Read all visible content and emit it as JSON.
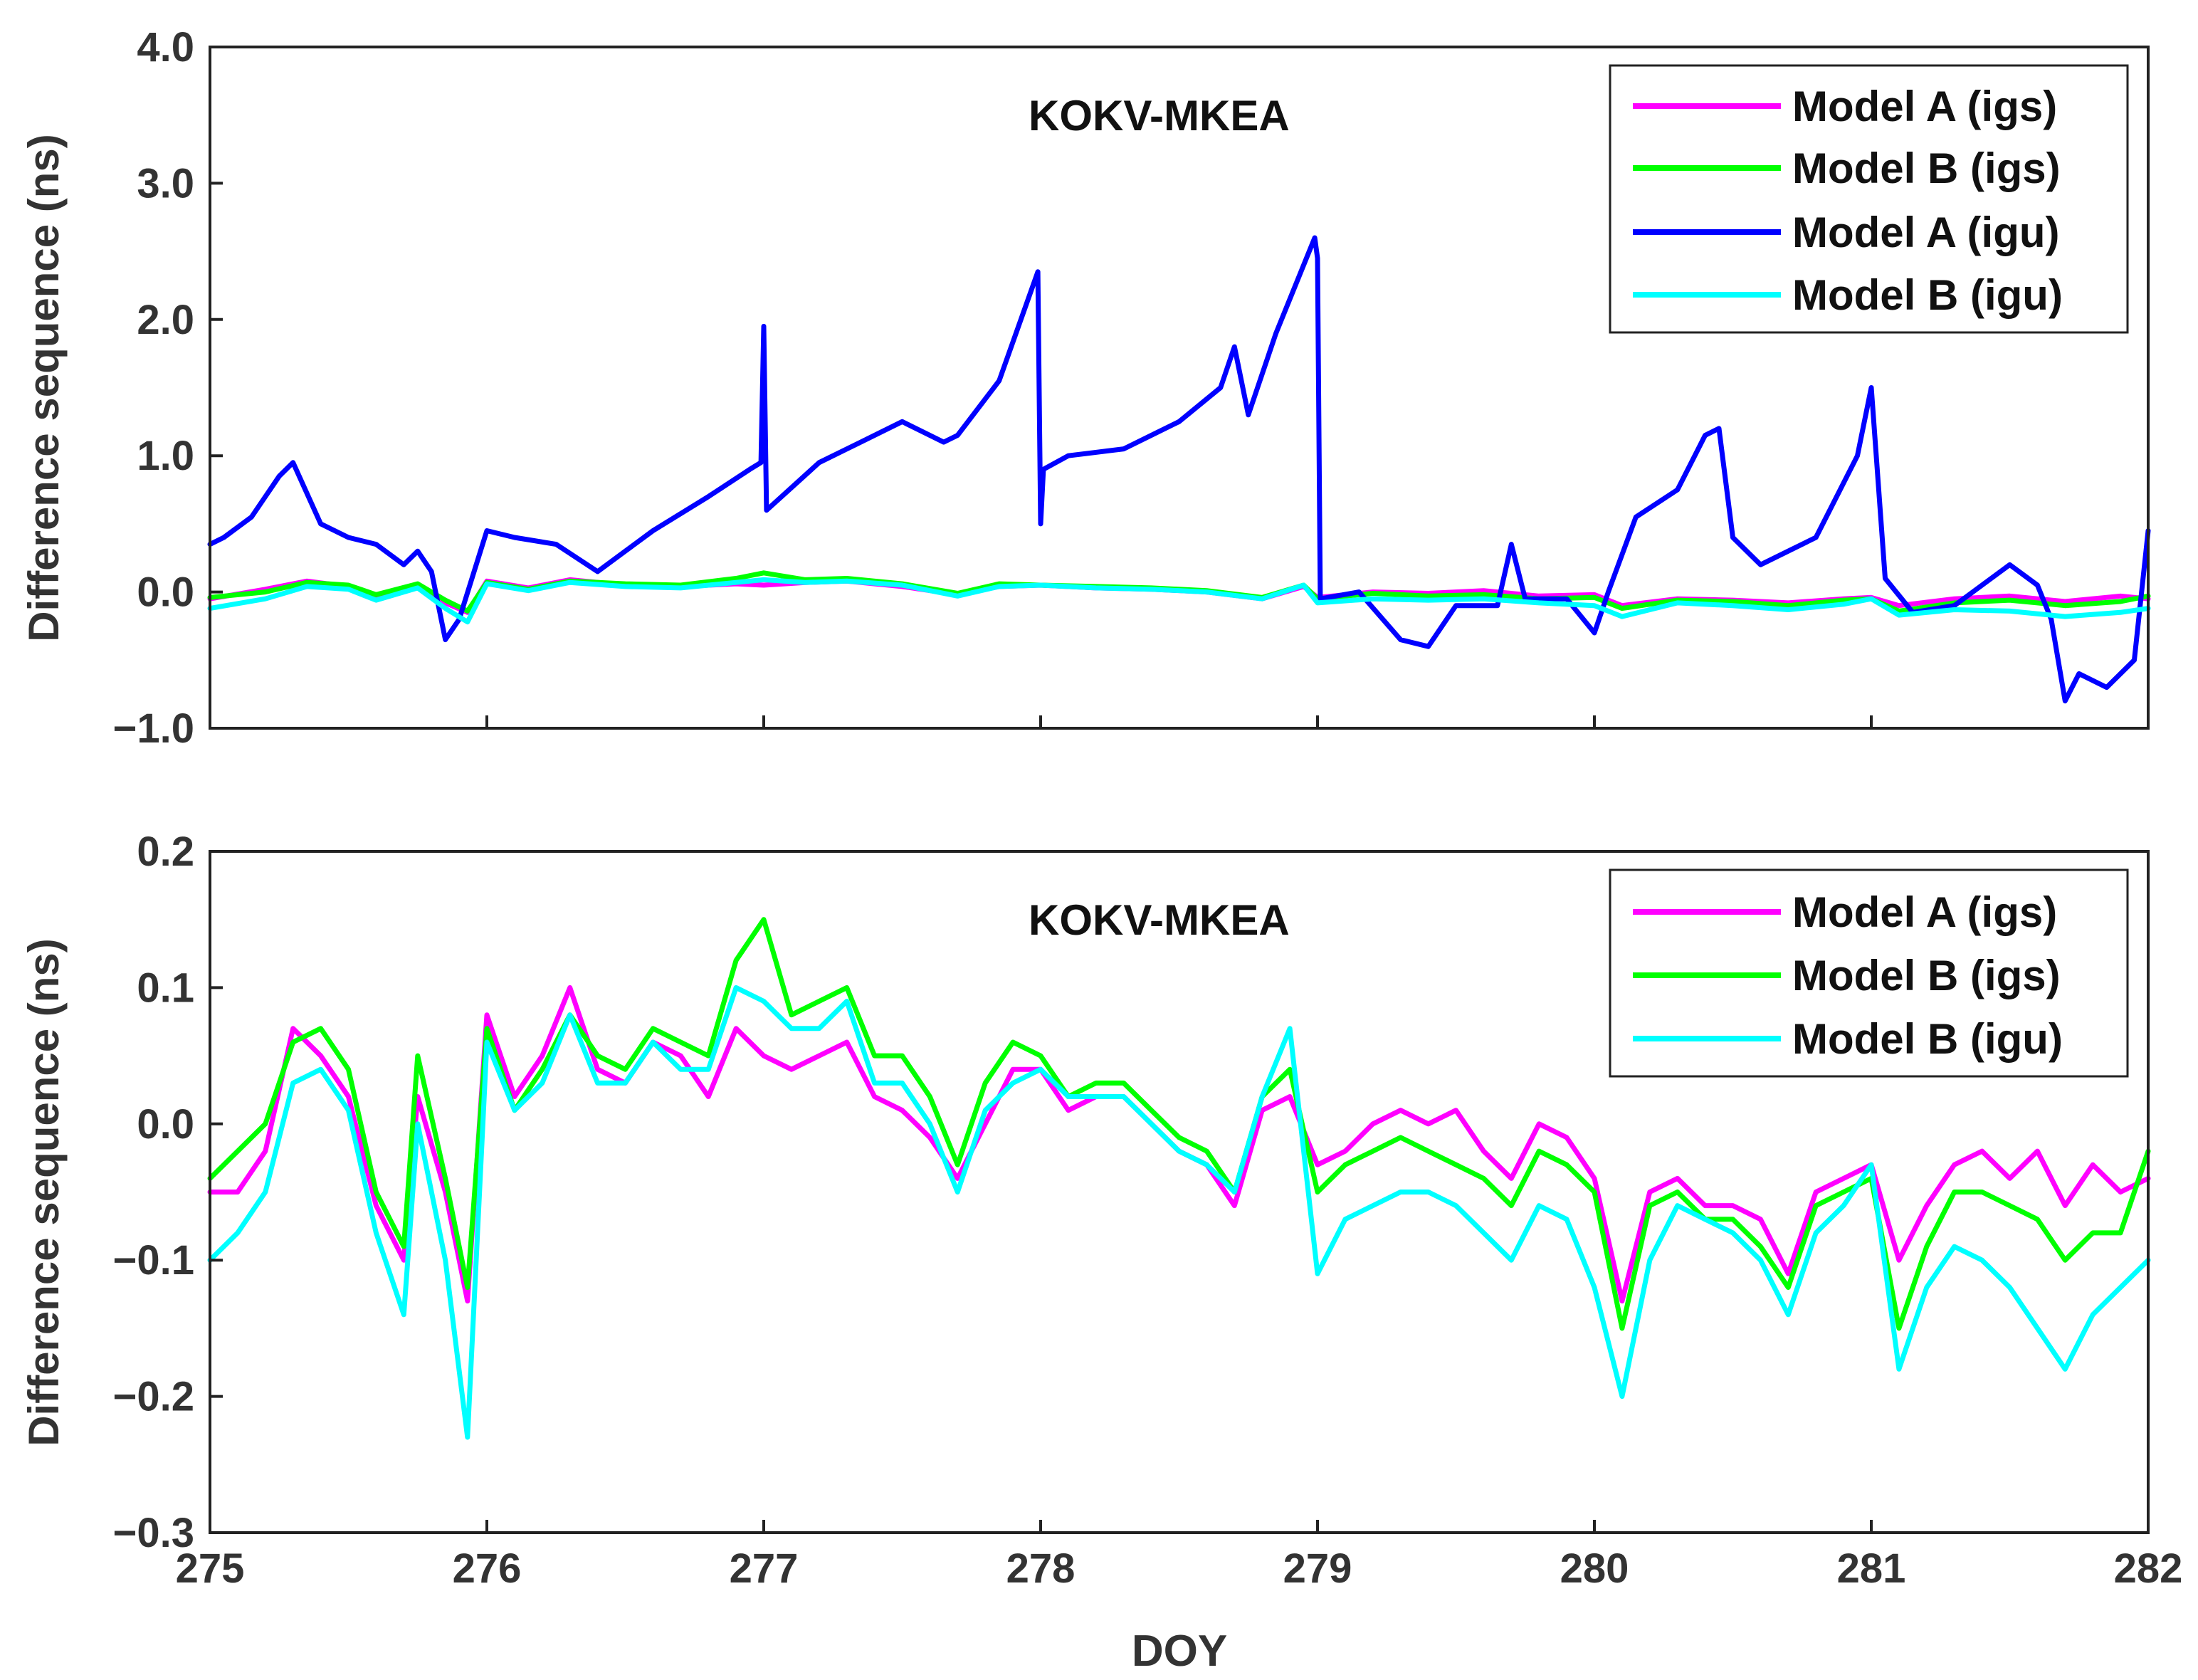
{
  "colors": {
    "model_a_igs": "#ff00ff",
    "model_b_igs": "#00ff00",
    "model_a_igu": "#0000ff",
    "model_b_igu": "#00ffff"
  },
  "chart_data": [
    {
      "type": "line",
      "title": "KOKV-MKEA",
      "xlabel": "",
      "ylabel": "Difference sequence (ns)",
      "xlim": [
        275,
        282
      ],
      "ylim": [
        -1.0,
        4.0
      ],
      "xticks": [
        275,
        276,
        277,
        278,
        279,
        280,
        281,
        282
      ],
      "xtick_labels": [
        "",
        "",
        "",
        "",
        "",
        "",
        "",
        ""
      ],
      "yticks": [
        -1.0,
        0.0,
        1.0,
        2.0,
        3.0,
        4.0
      ],
      "ytick_labels": [
        "−1.0",
        "0.0",
        "1.0",
        "2.0",
        "3.0",
        "4.0"
      ],
      "legend_position": "top-right",
      "series": [
        {
          "name": "Model A (igs)",
          "color": "#ff00ff",
          "x": [
            275.0,
            275.2,
            275.35,
            275.5,
            275.6,
            275.75,
            275.85,
            275.93,
            276.0,
            276.15,
            276.3,
            276.5,
            276.7,
            276.9,
            277.0,
            277.15,
            277.3,
            277.5,
            277.7,
            277.85,
            278.0,
            278.2,
            278.4,
            278.6,
            278.8,
            278.95,
            279.0,
            279.2,
            279.4,
            279.6,
            279.8,
            280.0,
            280.1,
            280.3,
            280.5,
            280.7,
            280.9,
            281.0,
            281.1,
            281.3,
            281.5,
            281.7,
            281.9,
            282.0
          ],
          "values": [
            -0.05,
            0.02,
            0.08,
            0.04,
            -0.03,
            0.05,
            -0.08,
            -0.15,
            0.08,
            0.03,
            0.09,
            0.05,
            0.04,
            0.06,
            0.05,
            0.07,
            0.08,
            0.04,
            -0.02,
            0.04,
            0.05,
            0.03,
            0.02,
            0.0,
            -0.05,
            0.04,
            -0.04,
            0.0,
            -0.01,
            0.01,
            -0.03,
            -0.02,
            -0.1,
            -0.05,
            -0.06,
            -0.08,
            -0.05,
            -0.04,
            -0.1,
            -0.05,
            -0.03,
            -0.07,
            -0.03,
            -0.05
          ]
        },
        {
          "name": "Model B (igs)",
          "color": "#00ff00",
          "x": [
            275.0,
            275.2,
            275.35,
            275.5,
            275.6,
            275.75,
            275.85,
            275.93,
            276.0,
            276.15,
            276.3,
            276.5,
            276.7,
            276.9,
            277.0,
            277.15,
            277.3,
            277.5,
            277.7,
            277.85,
            278.0,
            278.2,
            278.4,
            278.6,
            278.8,
            278.95,
            279.0,
            279.2,
            279.4,
            279.6,
            279.8,
            280.0,
            280.1,
            280.3,
            280.5,
            280.7,
            280.9,
            281.0,
            281.1,
            281.3,
            281.5,
            281.7,
            281.9,
            282.0
          ],
          "values": [
            -0.04,
            0.0,
            0.07,
            0.05,
            -0.02,
            0.06,
            -0.06,
            -0.14,
            0.07,
            0.02,
            0.08,
            0.06,
            0.05,
            0.1,
            0.14,
            0.09,
            0.1,
            0.06,
            -0.01,
            0.06,
            0.05,
            0.04,
            0.03,
            0.01,
            -0.04,
            0.05,
            -0.05,
            -0.01,
            -0.03,
            -0.02,
            -0.05,
            -0.04,
            -0.12,
            -0.06,
            -0.07,
            -0.1,
            -0.06,
            -0.05,
            -0.14,
            -0.08,
            -0.06,
            -0.1,
            -0.07,
            -0.03
          ]
        },
        {
          "name": "Model A (igu)",
          "color": "#0000ff",
          "x": [
            275.0,
            275.05,
            275.15,
            275.25,
            275.3,
            275.4,
            275.5,
            275.6,
            275.7,
            275.75,
            275.8,
            275.85,
            275.9,
            276.0,
            276.1,
            276.25,
            276.4,
            276.5,
            276.6,
            276.8,
            276.95,
            276.99,
            277.0,
            277.01,
            277.2,
            277.35,
            277.5,
            277.65,
            277.7,
            277.85,
            277.99,
            278.0,
            278.01,
            278.1,
            278.3,
            278.5,
            278.65,
            278.7,
            278.75,
            278.85,
            278.99,
            279.0,
            279.01,
            279.15,
            279.3,
            279.4,
            279.5,
            279.65,
            279.7,
            279.75,
            279.9,
            280.0,
            280.05,
            280.15,
            280.3,
            280.4,
            280.45,
            280.5,
            280.6,
            280.7,
            280.8,
            280.95,
            280.99,
            281.0,
            281.05,
            281.15,
            281.3,
            281.5,
            281.6,
            281.65,
            281.7,
            281.75,
            281.85,
            281.95,
            282.0
          ],
          "values": [
            0.35,
            0.4,
            0.55,
            0.85,
            0.95,
            0.5,
            0.4,
            0.35,
            0.2,
            0.3,
            0.15,
            -0.35,
            -0.2,
            0.45,
            0.4,
            0.35,
            0.15,
            0.3,
            0.45,
            0.7,
            0.9,
            0.95,
            1.95,
            0.6,
            0.95,
            1.1,
            1.25,
            1.1,
            1.15,
            1.55,
            2.35,
            0.5,
            0.9,
            1.0,
            1.05,
            1.25,
            1.5,
            1.8,
            1.3,
            1.9,
            2.6,
            2.45,
            -0.05,
            0.0,
            -0.35,
            -0.4,
            -0.1,
            -0.1,
            0.35,
            -0.05,
            -0.05,
            -0.3,
            0.0,
            0.55,
            0.75,
            1.15,
            1.2,
            0.4,
            0.2,
            0.3,
            0.4,
            1.0,
            1.4,
            1.5,
            0.1,
            -0.15,
            -0.1,
            0.2,
            0.05,
            -0.2,
            -0.8,
            -0.6,
            -0.7,
            -0.5,
            0.45
          ]
        },
        {
          "name": "Model B (igu)",
          "color": "#00ffff",
          "x": [
            275.0,
            275.2,
            275.35,
            275.5,
            275.6,
            275.75,
            275.85,
            275.93,
            276.0,
            276.15,
            276.3,
            276.5,
            276.7,
            276.9,
            277.0,
            277.15,
            277.3,
            277.5,
            277.7,
            277.85,
            278.0,
            278.2,
            278.4,
            278.6,
            278.8,
            278.95,
            279.0,
            279.2,
            279.4,
            279.6,
            279.8,
            280.0,
            280.1,
            280.3,
            280.5,
            280.7,
            280.9,
            281.0,
            281.1,
            281.3,
            281.5,
            281.7,
            281.9,
            282.0
          ],
          "values": [
            -0.12,
            -0.05,
            0.04,
            0.02,
            -0.06,
            0.03,
            -0.12,
            -0.22,
            0.06,
            0.01,
            0.07,
            0.04,
            0.03,
            0.07,
            0.09,
            0.07,
            0.08,
            0.05,
            -0.03,
            0.04,
            0.05,
            0.03,
            0.02,
            0.0,
            -0.05,
            0.05,
            -0.08,
            -0.05,
            -0.06,
            -0.05,
            -0.08,
            -0.1,
            -0.18,
            -0.08,
            -0.1,
            -0.13,
            -0.09,
            -0.05,
            -0.17,
            -0.13,
            -0.14,
            -0.18,
            -0.15,
            -0.12
          ]
        }
      ]
    },
    {
      "type": "line",
      "title": "KOKV-MKEA",
      "xlabel": "DOY",
      "ylabel": "Difference sequence (ns)",
      "xlim": [
        275,
        282
      ],
      "ylim": [
        -0.3,
        0.2
      ],
      "xticks": [
        275,
        276,
        277,
        278,
        279,
        280,
        281,
        282
      ],
      "xtick_labels": [
        "275",
        "276",
        "277",
        "278",
        "279",
        "280",
        "281",
        "282"
      ],
      "yticks": [
        -0.3,
        -0.2,
        -0.1,
        0.0,
        0.1,
        0.2
      ],
      "ytick_labels": [
        "−0.3",
        "−0.2",
        "−0.1",
        "0.0",
        "0.1",
        "0.2"
      ],
      "legend_position": "top-right",
      "series": [
        {
          "name": "Model A (igs)",
          "color": "#ff00ff",
          "x": [
            275.0,
            275.1,
            275.2,
            275.3,
            275.4,
            275.5,
            275.6,
            275.7,
            275.75,
            275.85,
            275.93,
            276.0,
            276.1,
            276.2,
            276.3,
            276.4,
            276.5,
            276.6,
            276.7,
            276.8,
            276.9,
            277.0,
            277.1,
            277.2,
            277.3,
            277.4,
            277.5,
            277.6,
            277.7,
            277.8,
            277.9,
            278.0,
            278.1,
            278.2,
            278.3,
            278.4,
            278.5,
            278.6,
            278.7,
            278.8,
            278.9,
            279.0,
            279.1,
            279.2,
            279.3,
            279.4,
            279.5,
            279.6,
            279.7,
            279.8,
            279.9,
            280.0,
            280.1,
            280.2,
            280.3,
            280.4,
            280.5,
            280.6,
            280.7,
            280.8,
            280.9,
            281.0,
            281.1,
            281.2,
            281.3,
            281.4,
            281.5,
            281.6,
            281.7,
            281.8,
            281.9,
            282.0
          ],
          "values": [
            -0.05,
            -0.05,
            -0.02,
            0.07,
            0.05,
            0.02,
            -0.06,
            -0.1,
            0.02,
            -0.05,
            -0.13,
            0.08,
            0.02,
            0.05,
            0.1,
            0.04,
            0.03,
            0.06,
            0.05,
            0.02,
            0.07,
            0.05,
            0.04,
            0.05,
            0.06,
            0.02,
            0.01,
            -0.01,
            -0.04,
            0.0,
            0.04,
            0.04,
            0.01,
            0.02,
            0.02,
            0.0,
            -0.02,
            -0.03,
            -0.06,
            0.01,
            0.02,
            -0.03,
            -0.02,
            0.0,
            0.01,
            0.0,
            0.01,
            -0.02,
            -0.04,
            0.0,
            -0.01,
            -0.04,
            -0.13,
            -0.05,
            -0.04,
            -0.06,
            -0.06,
            -0.07,
            -0.11,
            -0.05,
            -0.04,
            -0.03,
            -0.1,
            -0.06,
            -0.03,
            -0.02,
            -0.04,
            -0.02,
            -0.06,
            -0.03,
            -0.05,
            -0.04
          ]
        },
        {
          "name": "Model B (igs)",
          "color": "#00ff00",
          "x": [
            275.0,
            275.1,
            275.2,
            275.3,
            275.4,
            275.5,
            275.6,
            275.7,
            275.75,
            275.85,
            275.93,
            276.0,
            276.1,
            276.2,
            276.3,
            276.4,
            276.5,
            276.6,
            276.7,
            276.8,
            276.9,
            277.0,
            277.1,
            277.2,
            277.3,
            277.4,
            277.5,
            277.6,
            277.7,
            277.8,
            277.9,
            278.0,
            278.1,
            278.2,
            278.3,
            278.4,
            278.5,
            278.6,
            278.7,
            278.8,
            278.9,
            279.0,
            279.1,
            279.2,
            279.3,
            279.4,
            279.5,
            279.6,
            279.7,
            279.8,
            279.9,
            280.0,
            280.1,
            280.2,
            280.3,
            280.4,
            280.5,
            280.6,
            280.7,
            280.8,
            280.9,
            281.0,
            281.1,
            281.2,
            281.3,
            281.4,
            281.5,
            281.6,
            281.7,
            281.8,
            281.9,
            282.0
          ],
          "values": [
            -0.04,
            -0.02,
            0.0,
            0.06,
            0.07,
            0.04,
            -0.05,
            -0.09,
            0.05,
            -0.04,
            -0.12,
            0.07,
            0.01,
            0.04,
            0.08,
            0.05,
            0.04,
            0.07,
            0.06,
            0.05,
            0.12,
            0.15,
            0.08,
            0.09,
            0.1,
            0.05,
            0.05,
            0.02,
            -0.03,
            0.03,
            0.06,
            0.05,
            0.02,
            0.03,
            0.03,
            0.01,
            -0.01,
            -0.02,
            -0.05,
            0.02,
            0.04,
            -0.05,
            -0.03,
            -0.02,
            -0.01,
            -0.02,
            -0.03,
            -0.04,
            -0.06,
            -0.02,
            -0.03,
            -0.05,
            -0.15,
            -0.06,
            -0.05,
            -0.07,
            -0.07,
            -0.09,
            -0.12,
            -0.06,
            -0.05,
            -0.04,
            -0.15,
            -0.09,
            -0.05,
            -0.05,
            -0.06,
            -0.07,
            -0.1,
            -0.08,
            -0.08,
            -0.02
          ]
        },
        {
          "name": "Model B (igu)",
          "color": "#00ffff",
          "x": [
            275.0,
            275.1,
            275.2,
            275.3,
            275.4,
            275.5,
            275.6,
            275.7,
            275.75,
            275.85,
            275.93,
            276.0,
            276.1,
            276.2,
            276.3,
            276.4,
            276.5,
            276.6,
            276.7,
            276.8,
            276.9,
            277.0,
            277.1,
            277.2,
            277.3,
            277.4,
            277.5,
            277.6,
            277.7,
            277.8,
            277.9,
            278.0,
            278.1,
            278.2,
            278.3,
            278.4,
            278.5,
            278.6,
            278.7,
            278.8,
            278.9,
            279.0,
            279.1,
            279.2,
            279.3,
            279.4,
            279.5,
            279.6,
            279.7,
            279.8,
            279.9,
            280.0,
            280.1,
            280.2,
            280.3,
            280.4,
            280.5,
            280.6,
            280.7,
            280.8,
            280.9,
            281.0,
            281.1,
            281.2,
            281.3,
            281.4,
            281.5,
            281.6,
            281.7,
            281.8,
            281.9,
            282.0
          ],
          "values": [
            -0.1,
            -0.08,
            -0.05,
            0.03,
            0.04,
            0.01,
            -0.08,
            -0.14,
            0.0,
            -0.1,
            -0.23,
            0.06,
            0.01,
            0.03,
            0.08,
            0.03,
            0.03,
            0.06,
            0.04,
            0.04,
            0.1,
            0.09,
            0.07,
            0.07,
            0.09,
            0.03,
            0.03,
            0.0,
            -0.05,
            0.01,
            0.03,
            0.04,
            0.02,
            0.02,
            0.02,
            0.0,
            -0.02,
            -0.03,
            -0.05,
            0.02,
            0.07,
            -0.11,
            -0.07,
            -0.06,
            -0.05,
            -0.05,
            -0.06,
            -0.08,
            -0.1,
            -0.06,
            -0.07,
            -0.12,
            -0.2,
            -0.1,
            -0.06,
            -0.07,
            -0.08,
            -0.1,
            -0.14,
            -0.08,
            -0.06,
            -0.03,
            -0.18,
            -0.12,
            -0.09,
            -0.1,
            -0.12,
            -0.15,
            -0.18,
            -0.14,
            -0.12,
            -0.1
          ]
        }
      ]
    }
  ]
}
